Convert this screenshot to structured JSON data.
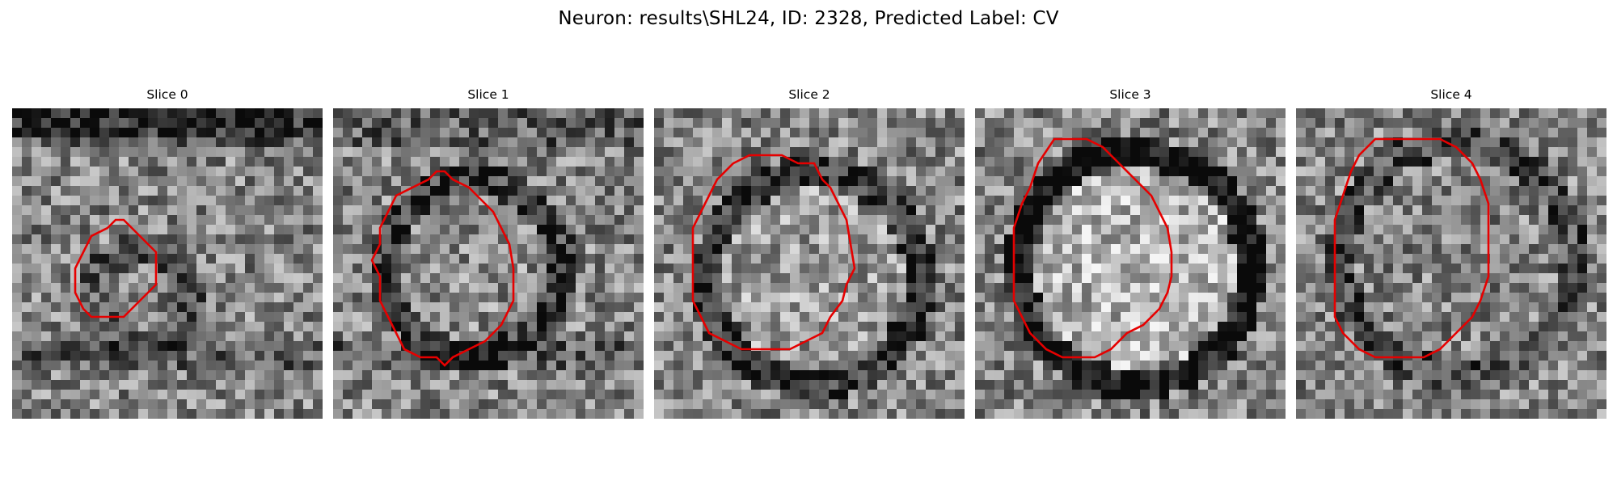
{
  "figure": {
    "title": "Neuron: results\\SHL24, ID: 2328, Predicted Label: CV"
  },
  "colors": {
    "contour": "#e60000",
    "background": "#ffffff"
  },
  "panels": [
    {
      "title": "Slice 0"
    },
    {
      "title": "Slice 1"
    },
    {
      "title": "Slice 2"
    },
    {
      "title": "Slice 3"
    },
    {
      "title": "Slice 4"
    }
  ]
}
